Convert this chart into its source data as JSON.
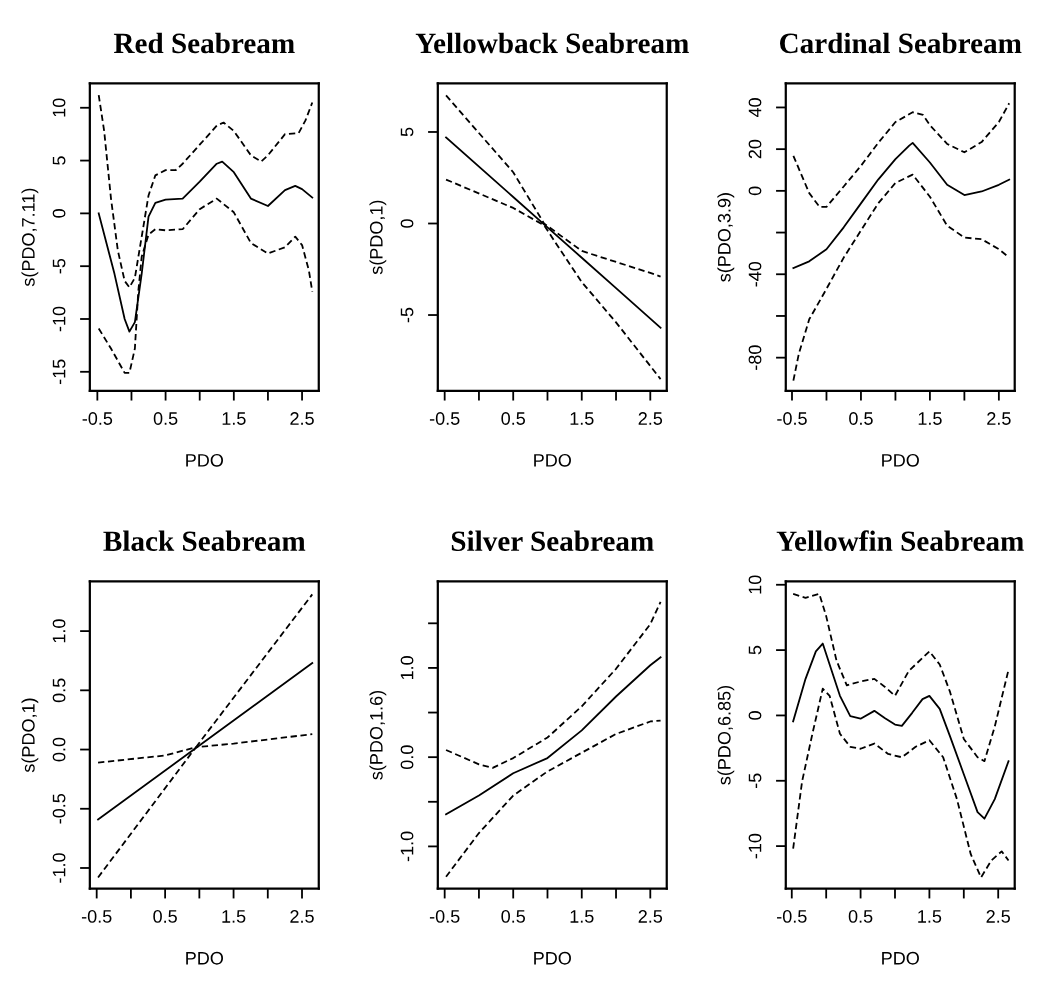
{
  "chart_data": [
    {
      "type": "line",
      "title": "Red Seabream",
      "xlabel": "PDO",
      "ylabel": "s(PDO,7.11)",
      "xlim": [
        -0.61,
        2.745
      ],
      "ylim": [
        -16.8,
        12.3
      ],
      "xticks": [
        -0.5,
        {
          "value": 0,
          "label": null
        },
        0.5,
        {
          "value": 1,
          "label": null
        },
        1.5,
        {
          "value": 2,
          "label": null
        },
        2.5
      ],
      "yticks": [
        -15,
        -10,
        -5,
        0,
        5,
        10
      ],
      "grid": false,
      "marker": "none",
      "series": [
        {
          "color": "#000000",
          "line_style": "solid",
          "x": [
            -0.48,
            -0.25,
            -0.1,
            -0.03,
            0.05,
            0.15,
            0.25,
            0.35,
            0.5,
            0.75,
            1.0,
            1.25,
            1.33,
            1.5,
            1.75,
            2.0,
            2.25,
            2.4,
            2.5,
            2.65
          ],
          "values": [
            0,
            -5.7,
            -10,
            -11.2,
            -10.3,
            -5.7,
            -0.3,
            1.0,
            1.3,
            1.4,
            3.0,
            4.7,
            4.9,
            3.9,
            1.4,
            0.7,
            2.2,
            2.6,
            2.3,
            1.5
          ]
        },
        {
          "color": "#000000",
          "line_style": "dashed",
          "x": [
            -0.48,
            -0.4,
            -0.3,
            -0.2,
            -0.1,
            -0.03,
            0.05,
            0.15,
            0.25,
            0.35,
            0.5,
            0.65,
            0.75,
            1.0,
            1.25,
            1.35,
            1.5,
            1.75,
            1.9,
            2.0,
            2.25,
            2.45,
            2.55,
            2.65
          ],
          "values": [
            11.2,
            7.8,
            1.4,
            -3.5,
            -6.4,
            -7.0,
            -6.1,
            -2.2,
            1.7,
            3.6,
            4.1,
            4.1,
            4.7,
            6.5,
            8.3,
            8.6,
            7.8,
            5.5,
            4.9,
            5.5,
            7.5,
            7.6,
            8.8,
            10.5
          ]
        },
        {
          "color": "#000000",
          "line_style": "dashed",
          "x": [
            -0.48,
            -0.3,
            -0.1,
            -0.03,
            0.05,
            0.1,
            0.15,
            0.25,
            0.35,
            0.5,
            0.75,
            1.0,
            1.25,
            1.5,
            1.75,
            2.0,
            2.25,
            2.4,
            2.5,
            2.6,
            2.65
          ],
          "values": [
            -10.9,
            -12.8,
            -15.1,
            -15.1,
            -12.8,
            -7.4,
            -4.1,
            -2.0,
            -1.5,
            -1.6,
            -1.5,
            0.4,
            1.4,
            0.1,
            -2.8,
            -3.8,
            -3.2,
            -2.2,
            -3.0,
            -5.4,
            -7.4
          ]
        }
      ]
    },
    {
      "type": "line",
      "title": "Yellowback Seabream",
      "xlabel": "PDO",
      "ylabel": "s(PDO,1)",
      "xlim": [
        -0.6,
        2.74
      ],
      "ylim": [
        -9.14,
        7.65
      ],
      "xticks": [
        -0.5,
        {
          "value": 0,
          "label": null
        },
        0.5,
        {
          "value": 1,
          "label": null
        },
        1.5,
        {
          "value": 2,
          "label": null
        },
        2.5
      ],
      "yticks": [
        -5,
        0,
        5
      ],
      "grid": false,
      "marker": "none",
      "series": [
        {
          "color": "#000000",
          "line_style": "solid",
          "x": [
            -0.48,
            0.5,
            0.95,
            1.5,
            2.0,
            2.65
          ],
          "values": [
            4.7,
            1.45,
            -0.05,
            -1.87,
            -3.53,
            -5.7
          ]
        },
        {
          "color": "#000000",
          "line_style": "dashed",
          "x": [
            -0.48,
            0.5,
            0.95,
            1.5,
            2.5,
            2.65
          ],
          "values": [
            7.0,
            2.8,
            0.0,
            -1.5,
            -2.7,
            -2.9
          ]
        },
        {
          "color": "#000000",
          "line_style": "dashed",
          "x": [
            -0.48,
            0.5,
            0.95,
            1.5,
            2.0,
            2.65
          ],
          "values": [
            2.4,
            0.85,
            -0.1,
            -3.2,
            -5.4,
            -8.5
          ]
        }
      ]
    },
    {
      "type": "line",
      "title": "Cardinal Seabream",
      "xlabel": "PDO",
      "ylabel": "s(PDO,3.9)",
      "xlim": [
        -0.59,
        2.73
      ],
      "ylim": [
        -95.9,
        51.5
      ],
      "xticks": [
        -0.5,
        {
          "value": 0,
          "label": null
        },
        0.5,
        {
          "value": 1,
          "label": null
        },
        1.5,
        {
          "value": 2,
          "label": null
        },
        2.5
      ],
      "yticks": [
        -80,
        {
          "value": -60,
          "label": null
        },
        -40,
        {
          "value": -20,
          "label": null
        },
        0,
        20,
        40
      ],
      "grid": false,
      "marker": "none",
      "series": [
        {
          "color": "#000000",
          "line_style": "solid",
          "x": [
            -0.48,
            -0.25,
            0,
            0.25,
            0.5,
            0.75,
            1.0,
            1.2,
            1.25,
            1.5,
            1.75,
            2.0,
            2.25,
            2.5,
            2.65
          ],
          "values": [
            -37,
            -33.8,
            -28,
            -17.5,
            -6,
            5.4,
            15.2,
            21.7,
            23,
            13.6,
            2.9,
            -2.0,
            -0.3,
            2.9,
            5.4
          ]
        },
        {
          "color": "#000000",
          "line_style": "dashed",
          "x": [
            -0.48,
            -0.25,
            -0.1,
            0,
            0.25,
            0.5,
            0.75,
            1.0,
            1.25,
            1.4,
            1.5,
            1.75,
            2.0,
            2.25,
            2.5,
            2.65
          ],
          "values": [
            16.8,
            -1.1,
            -7.7,
            -7.7,
            2.1,
            12,
            23,
            33,
            37.7,
            36.4,
            31.5,
            22.5,
            18.5,
            23.4,
            33,
            42
          ]
        },
        {
          "color": "#000000",
          "line_style": "dashed",
          "x": [
            -0.48,
            -0.4,
            -0.25,
            0,
            0.25,
            0.5,
            0.75,
            1.0,
            1.25,
            1.5,
            1.75,
            2.0,
            2.25,
            2.5,
            2.65
          ],
          "values": [
            -91,
            -78,
            -61.6,
            -47,
            -32,
            -19,
            -6,
            3.8,
            7.8,
            -2.8,
            -16.7,
            -22.4,
            -23.2,
            -28,
            -32
          ]
        }
      ]
    },
    {
      "type": "line",
      "title": "Black Seabream",
      "xlabel": "PDO",
      "ylabel": "s(PDO,1)",
      "xlim": [
        -0.6,
        2.745
      ],
      "ylim": [
        -1.175,
        1.42
      ],
      "xticks": [
        -0.5,
        {
          "value": 0,
          "label": null
        },
        0.5,
        {
          "value": 1,
          "label": null
        },
        1.5,
        {
          "value": 2,
          "label": null
        },
        2.5
      ],
      "yticks": [
        {
          "value": -1.0,
          "label": "-1.0"
        },
        -0.5,
        {
          "value": 0.0,
          "label": "0.0"
        },
        0.5,
        {
          "value": 1.0,
          "label": "1.0"
        }
      ],
      "grid": false,
      "marker": "none",
      "series": [
        {
          "color": "#000000",
          "line_style": "solid",
          "x": [
            -0.48,
            0.92,
            2.65
          ],
          "values": [
            -0.59,
            0.0,
            0.73
          ]
        },
        {
          "color": "#000000",
          "line_style": "dashed",
          "x": [
            -0.48,
            0.5,
            0.95,
            2.65
          ],
          "values": [
            -0.11,
            -0.05,
            0.02,
            1.31
          ]
        },
        {
          "color": "#000000",
          "line_style": "dashed",
          "x": [
            -0.48,
            0.95,
            1.5,
            2.65
          ],
          "values": [
            -1.08,
            0.02,
            0.05,
            0.13
          ]
        }
      ]
    },
    {
      "type": "line",
      "title": "Silver Seabream",
      "xlabel": "PDO",
      "ylabel": "s(PDO,1.6)",
      "xlim": [
        -0.6,
        2.74
      ],
      "ylim": [
        -1.474,
        1.97
      ],
      "xticks": [
        -0.5,
        {
          "value": 0,
          "label": null
        },
        0.5,
        {
          "value": 1,
          "label": null
        },
        1.5,
        {
          "value": 2,
          "label": null
        },
        2.5
      ],
      "yticks": [
        {
          "value": -1.0,
          "label": "-1.0"
        },
        {
          "value": -0.5,
          "label": null
        },
        {
          "value": 0.0,
          "label": "0.0"
        },
        {
          "value": 0.5,
          "label": null
        },
        {
          "value": 1.0,
          "label": "1.0"
        },
        {
          "value": 1.5,
          "label": null
        }
      ],
      "grid": false,
      "marker": "none",
      "series": [
        {
          "color": "#000000",
          "line_style": "solid",
          "x": [
            -0.48,
            0,
            0.5,
            1.0,
            1.5,
            2.0,
            2.5,
            2.65
          ],
          "values": [
            -0.64,
            -0.43,
            -0.18,
            -0.01,
            0.3,
            0.68,
            1.03,
            1.12
          ]
        },
        {
          "color": "#000000",
          "line_style": "dashed",
          "x": [
            -0.48,
            0,
            0.2,
            0.5,
            1.0,
            1.5,
            2.0,
            2.5,
            2.65
          ],
          "values": [
            0.08,
            -0.08,
            -0.12,
            -0.01,
            0.22,
            0.57,
            0.99,
            1.49,
            1.74
          ]
        },
        {
          "color": "#000000",
          "line_style": "dashed",
          "x": [
            -0.48,
            0,
            0.5,
            1.0,
            1.5,
            2.0,
            2.5,
            2.65
          ],
          "values": [
            -1.34,
            -0.85,
            -0.43,
            -0.16,
            0.05,
            0.26,
            0.4,
            0.41
          ]
        }
      ]
    },
    {
      "type": "line",
      "title": "Yellowfin Seabream",
      "xlabel": "PDO",
      "ylabel": "s(PDO,6.85)",
      "xlim": [
        -0.587,
        2.74
      ],
      "ylim": [
        -13.26,
        10.26
      ],
      "xticks": [
        -0.5,
        {
          "value": 0,
          "label": null
        },
        0.5,
        {
          "value": 1,
          "label": null
        },
        1.5,
        {
          "value": 2,
          "label": null
        },
        2.5
      ],
      "yticks": [
        -10,
        -5,
        0,
        5,
        10
      ],
      "grid": false,
      "marker": "none",
      "series": [
        {
          "color": "#000000",
          "line_style": "solid",
          "x": [
            -0.48,
            -0.3,
            -0.15,
            -0.05,
            0.05,
            0.2,
            0.35,
            0.5,
            0.7,
            0.85,
            1.0,
            1.1,
            1.25,
            1.4,
            1.5,
            1.65,
            1.8,
            2.0,
            2.2,
            2.3,
            2.45,
            2.65
          ],
          "values": [
            -0.45,
            2.8,
            4.9,
            5.5,
            3.9,
            1.5,
            -0.05,
            -0.25,
            0.35,
            -0.2,
            -0.7,
            -0.8,
            0.2,
            1.25,
            1.5,
            0.5,
            -1.6,
            -4.5,
            -7.4,
            -7.9,
            -6.4,
            -3.5
          ]
        },
        {
          "color": "#000000",
          "line_style": "dashed",
          "x": [
            -0.48,
            -0.3,
            -0.1,
            0.0,
            0.15,
            0.3,
            0.5,
            0.7,
            0.85,
            1.0,
            1.2,
            1.5,
            1.65,
            1.8,
            2.0,
            2.2,
            2.3,
            2.45,
            2.65
          ],
          "values": [
            9.3,
            9.0,
            9.3,
            7.6,
            4.2,
            2.3,
            2.6,
            2.8,
            2.2,
            1.5,
            3.4,
            4.9,
            3.9,
            1.8,
            -1.8,
            -3.2,
            -3.5,
            -0.85,
            3.5
          ]
        },
        {
          "color": "#000000",
          "line_style": "dashed",
          "x": [
            -0.48,
            -0.35,
            -0.2,
            -0.05,
            0.05,
            0.2,
            0.35,
            0.5,
            0.7,
            0.9,
            1.1,
            1.3,
            1.5,
            1.7,
            1.9,
            2.1,
            2.25,
            2.4,
            2.55,
            2.65
          ],
          "values": [
            -10.2,
            -5.05,
            -1.4,
            2.05,
            1.5,
            -1.4,
            -2.4,
            -2.55,
            -2.15,
            -2.95,
            -3.2,
            -2.4,
            -1.9,
            -3.2,
            -6.4,
            -10.6,
            -12.4,
            -11.1,
            -10.4,
            -11.1
          ]
        }
      ]
    }
  ]
}
